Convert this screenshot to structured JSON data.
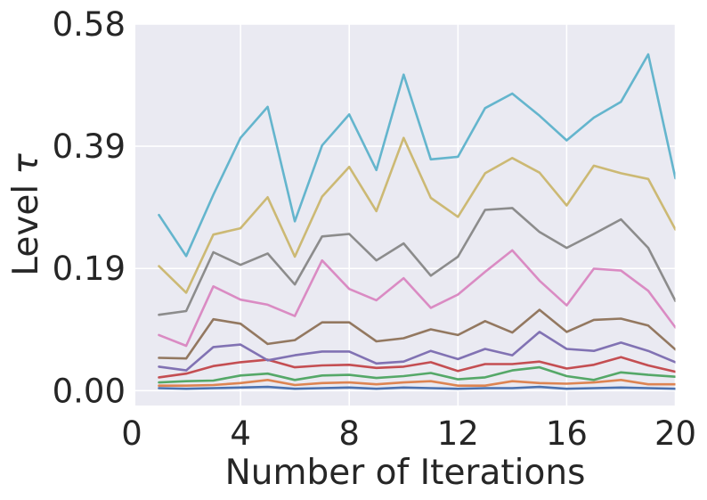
{
  "figure": {
    "background": "#ffffff",
    "plot_background": "#eaeaf2",
    "grid_color": "#ffffff",
    "text_color": "#262626"
  },
  "chart_data": {
    "type": "line",
    "title": "",
    "xlabel": "Number of Iterations",
    "ylabel": "Level τ",
    "ylabel_prefix": "Level",
    "ylabel_symbol": "τ",
    "x": [
      1,
      2,
      3,
      4,
      5,
      6,
      7,
      8,
      9,
      10,
      11,
      12,
      13,
      14,
      15,
      16,
      17,
      18,
      19,
      20
    ],
    "xticks": [
      0,
      4,
      8,
      12,
      16,
      20
    ],
    "yticks": [
      0,
      0.1933,
      0.3867,
      0.58
    ],
    "ytick_labels": [
      "0.00",
      "0.19",
      "0.39",
      "0.58"
    ],
    "xlim": [
      0.13,
      20.0
    ],
    "ylim": [
      -0.0235,
      0.58
    ],
    "grid": true,
    "legend": "none",
    "series": [
      {
        "name": "blue",
        "color": "#4C72B0",
        "values": [
          0.004,
          0.003,
          0.004,
          0.005,
          0.006,
          0.003,
          0.004,
          0.005,
          0.003,
          0.005,
          0.004,
          0.003,
          0.004,
          0.004,
          0.006,
          0.003,
          0.004,
          0.005,
          0.004,
          0.003
        ]
      },
      {
        "name": "orange",
        "color": "#DD8452",
        "values": [
          0.008,
          0.008,
          0.009,
          0.012,
          0.017,
          0.009,
          0.012,
          0.013,
          0.01,
          0.013,
          0.015,
          0.008,
          0.008,
          0.015,
          0.012,
          0.011,
          0.013,
          0.017,
          0.01,
          0.01
        ]
      },
      {
        "name": "green",
        "color": "#55A868",
        "values": [
          0.013,
          0.015,
          0.016,
          0.024,
          0.027,
          0.017,
          0.024,
          0.025,
          0.02,
          0.023,
          0.028,
          0.018,
          0.021,
          0.032,
          0.037,
          0.023,
          0.017,
          0.029,
          0.025,
          0.022
        ]
      },
      {
        "name": "red",
        "color": "#C44E52",
        "values": [
          0.021,
          0.027,
          0.039,
          0.045,
          0.049,
          0.037,
          0.04,
          0.041,
          0.036,
          0.038,
          0.045,
          0.031,
          0.042,
          0.042,
          0.046,
          0.035,
          0.041,
          0.053,
          0.04,
          0.03
        ]
      },
      {
        "name": "purple",
        "color": "#8172B3",
        "values": [
          0.038,
          0.032,
          0.069,
          0.073,
          0.048,
          0.056,
          0.062,
          0.062,
          0.043,
          0.046,
          0.063,
          0.05,
          0.066,
          0.056,
          0.093,
          0.066,
          0.063,
          0.076,
          0.063,
          0.045
        ]
      },
      {
        "name": "brown",
        "color": "#937860",
        "values": [
          0.052,
          0.051,
          0.113,
          0.106,
          0.074,
          0.08,
          0.108,
          0.108,
          0.078,
          0.083,
          0.097,
          0.088,
          0.11,
          0.092,
          0.128,
          0.093,
          0.112,
          0.114,
          0.103,
          0.065
        ]
      },
      {
        "name": "pink",
        "color": "#DA8BC3",
        "values": [
          0.088,
          0.071,
          0.165,
          0.144,
          0.136,
          0.118,
          0.206,
          0.161,
          0.143,
          0.178,
          0.131,
          0.152,
          0.188,
          0.222,
          0.174,
          0.135,
          0.193,
          0.19,
          0.158,
          0.1
        ]
      },
      {
        "name": "gray",
        "color": "#8C8C8C",
        "values": [
          0.12,
          0.126,
          0.219,
          0.199,
          0.217,
          0.168,
          0.244,
          0.248,
          0.206,
          0.233,
          0.182,
          0.212,
          0.286,
          0.289,
          0.251,
          0.226,
          0.248,
          0.271,
          0.226,
          0.142
        ]
      },
      {
        "name": "yellow",
        "color": "#CCB974",
        "values": [
          0.197,
          0.155,
          0.247,
          0.257,
          0.306,
          0.212,
          0.307,
          0.354,
          0.284,
          0.4,
          0.305,
          0.275,
          0.344,
          0.368,
          0.345,
          0.293,
          0.356,
          0.344,
          0.335,
          0.255
        ]
      },
      {
        "name": "cyan",
        "color": "#64B5CD",
        "values": [
          0.278,
          0.213,
          0.31,
          0.4,
          0.449,
          0.268,
          0.388,
          0.437,
          0.349,
          0.5,
          0.366,
          0.37,
          0.447,
          0.47,
          0.435,
          0.396,
          0.432,
          0.457,
          0.532,
          0.336
        ]
      }
    ]
  }
}
